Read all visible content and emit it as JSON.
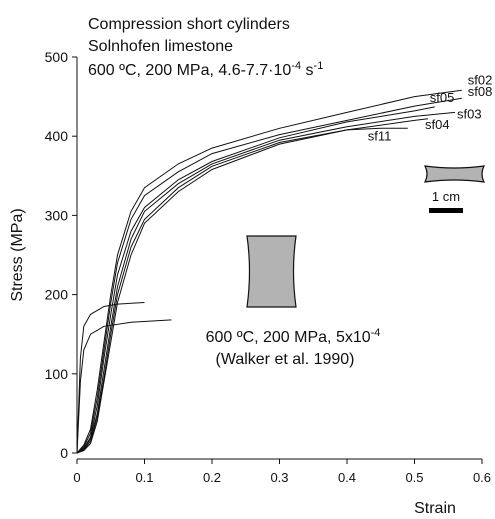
{
  "chart_data": {
    "type": "line",
    "title_lines": [
      "Compression short cylinders",
      "Solnhofen limestone"
    ],
    "title_line3": [
      {
        "text": "600 ºC, 200 MPa, 4.6-7.7·10"
      },
      {
        "sup": "-4"
      },
      {
        "text": " s"
      },
      {
        "sup": "-1"
      }
    ],
    "annotation_line1": [
      {
        "text": "600 ºC, 200 MPa, 5x10"
      },
      {
        "sup": "-4"
      }
    ],
    "annotation_line2": "(Walker et al. 1990)",
    "scale_bar_label": "1 cm",
    "x_label": "Strain",
    "y_label": "Stress (MPa)",
    "xlim": [
      0,
      0.6
    ],
    "ylim": [
      0,
      500
    ],
    "xticks": [
      0,
      0.1,
      0.2,
      0.3,
      0.4,
      0.5,
      0.6
    ],
    "yticks": [
      0,
      100,
      200,
      300,
      400,
      500
    ],
    "color": "#111111",
    "series": [
      {
        "name": "sf02",
        "x": [
          0,
          0.01,
          0.02,
          0.03,
          0.04,
          0.05,
          0.06,
          0.08,
          0.1,
          0.15,
          0.2,
          0.3,
          0.4,
          0.5,
          0.57
        ],
        "values": [
          0,
          10,
          30,
          80,
          140,
          200,
          250,
          305,
          335,
          365,
          385,
          410,
          430,
          450,
          458
        ]
      },
      {
        "name": "sf08",
        "x": [
          0,
          0.01,
          0.02,
          0.03,
          0.04,
          0.05,
          0.06,
          0.08,
          0.1,
          0.15,
          0.2,
          0.3,
          0.4,
          0.5,
          0.57
        ],
        "values": [
          0,
          8,
          25,
          70,
          130,
          190,
          240,
          295,
          325,
          355,
          378,
          402,
          420,
          438,
          448
        ]
      },
      {
        "name": "sf05",
        "x": [
          0,
          0.01,
          0.02,
          0.03,
          0.04,
          0.05,
          0.06,
          0.08,
          0.1,
          0.15,
          0.2,
          0.3,
          0.4,
          0.5,
          0.53
        ],
        "values": [
          0,
          6,
          20,
          60,
          120,
          175,
          225,
          280,
          310,
          345,
          368,
          398,
          418,
          432,
          437
        ]
      },
      {
        "name": "sf03",
        "x": [
          0,
          0.01,
          0.02,
          0.03,
          0.04,
          0.05,
          0.06,
          0.08,
          0.1,
          0.15,
          0.2,
          0.3,
          0.4,
          0.5,
          0.56
        ],
        "values": [
          0,
          5,
          18,
          50,
          105,
          160,
          210,
          270,
          305,
          340,
          365,
          395,
          412,
          425,
          430
        ]
      },
      {
        "name": "sf04",
        "x": [
          0,
          0.01,
          0.02,
          0.03,
          0.04,
          0.05,
          0.06,
          0.08,
          0.1,
          0.15,
          0.2,
          0.3,
          0.4,
          0.5,
          0.52
        ],
        "values": [
          0,
          4,
          15,
          45,
          95,
          150,
          200,
          260,
          295,
          335,
          362,
          392,
          408,
          420,
          422
        ]
      },
      {
        "name": "sf11",
        "x": [
          0,
          0.01,
          0.02,
          0.03,
          0.04,
          0.05,
          0.06,
          0.08,
          0.1,
          0.15,
          0.2,
          0.3,
          0.4,
          0.45,
          0.49
        ],
        "values": [
          0,
          3,
          12,
          40,
          90,
          140,
          190,
          250,
          290,
          330,
          358,
          390,
          408,
          410,
          410
        ]
      },
      {
        "x": [
          0,
          0.005,
          0.01,
          0.02,
          0.04,
          0.06,
          0.1
        ],
        "values": [
          0,
          120,
          160,
          175,
          185,
          188,
          190
        ]
      },
      {
        "x": [
          0,
          0.005,
          0.01,
          0.02,
          0.04,
          0.08,
          0.14
        ],
        "values": [
          0,
          90,
          130,
          150,
          160,
          165,
          168
        ]
      }
    ]
  }
}
